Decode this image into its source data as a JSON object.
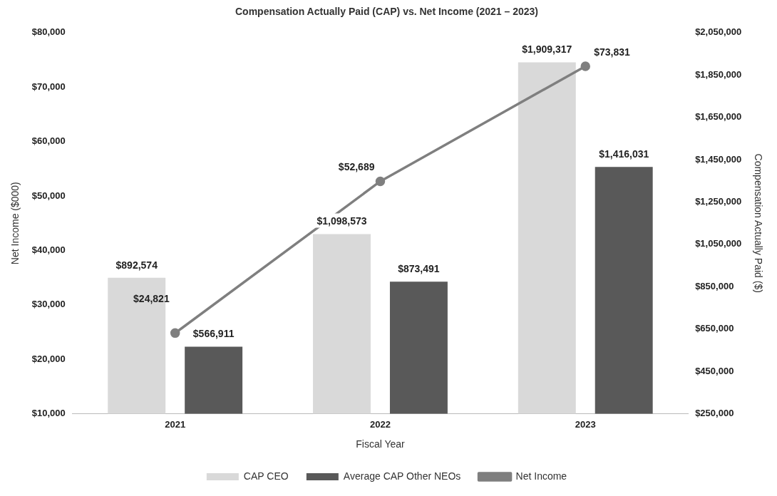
{
  "chart_data": {
    "type": "bar",
    "title": "Compensation Actually Paid (CAP) vs. Net Income (2021 – 2023)",
    "xlabel": "Fiscal Year",
    "ylabel": "Net Income ($000)",
    "y2label": "Compensation Actually Paid ($)",
    "categories": [
      "2021",
      "2022",
      "2023"
    ],
    "series": [
      {
        "name": "CAP CEO",
        "axis": "y2",
        "color": "#d9d9d9",
        "values": [
          892574,
          1098573,
          1909317
        ],
        "value_labels": [
          "$892,574",
          "$1,098,573",
          "$1,909,317"
        ]
      },
      {
        "name": "Average CAP Other NEOs",
        "axis": "y2",
        "color": "#595959",
        "values": [
          566911,
          873491,
          1416031
        ],
        "value_labels": [
          "$566,911",
          "$873,491",
          "$1,416,031"
        ]
      },
      {
        "name": "Net Income",
        "type": "line",
        "axis": "y",
        "color": "#7f7f7f",
        "values": [
          24821,
          52689,
          73831
        ],
        "value_labels": [
          "$24,821",
          "$52,689",
          "$73,831"
        ]
      }
    ],
    "ylim": [
      10000,
      80000
    ],
    "yticks": [
      {
        "value": 10000,
        "label": "$10,000"
      },
      {
        "value": 20000,
        "label": "$20,000"
      },
      {
        "value": 30000,
        "label": "$30,000"
      },
      {
        "value": 40000,
        "label": "$40,000"
      },
      {
        "value": 50000,
        "label": "$50,000"
      },
      {
        "value": 60000,
        "label": "$60,000"
      },
      {
        "value": 70000,
        "label": "$70,000"
      },
      {
        "value": 80000,
        "label": "$80,000"
      }
    ],
    "y2lim": [
      250000,
      2050000
    ],
    "y2ticks": [
      {
        "value": 250000,
        "label": "$250,000"
      },
      {
        "value": 450000,
        "label": "$450,000"
      },
      {
        "value": 650000,
        "label": "$650,000"
      },
      {
        "value": 850000,
        "label": "$850,000"
      },
      {
        "value": 1050000,
        "label": "$1,050,000"
      },
      {
        "value": 1250000,
        "label": "$1,250,000"
      },
      {
        "value": 1450000,
        "label": "$1,450,000"
      },
      {
        "value": 1650000,
        "label": "$1,650,000"
      },
      {
        "value": 1850000,
        "label": "$1,850,000"
      },
      {
        "value": 2050000,
        "label": "$2,050,000"
      }
    ],
    "grid": false,
    "legend": "bottom",
    "marker": "circle",
    "line_style": "solid"
  }
}
